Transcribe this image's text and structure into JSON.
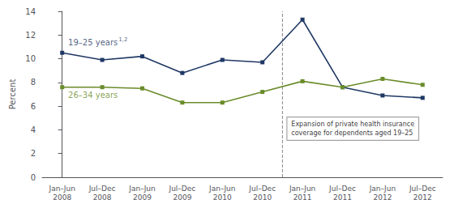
{
  "chart_data": {
    "type": "line",
    "categories": [
      "Jan–Jun\n2008",
      "Jul–Dec\n2008",
      "Jan–Jun\n2009",
      "Jul–Dec\n2009",
      "Jan–Jun\n2010",
      "Jul–Dec\n2010",
      "Jan–Jun\n2011",
      "Jul–Dec\n2011",
      "Jan–Jun\n2012",
      "Jul–Dec\n2012"
    ],
    "series": [
      {
        "name": "19–25 years",
        "superscript": "1,2",
        "color": "#1f3864",
        "values": [
          10.5,
          9.9,
          10.2,
          8.8,
          9.9,
          9.7,
          13.3,
          7.6,
          6.9,
          6.7
        ]
      },
      {
        "name": "26–34 years",
        "color": "#6a8c2a",
        "values": [
          7.6,
          7.6,
          7.5,
          6.3,
          6.3,
          7.2,
          8.1,
          7.6,
          8.3,
          7.8
        ]
      }
    ],
    "marker": "square",
    "y_label": "Percent",
    "ylim": [
      0,
      14
    ],
    "yticks": [
      0,
      2,
      4,
      6,
      8,
      10,
      12,
      14
    ],
    "grid": false,
    "annotation": {
      "text": "Expansion of private health insurance\ncoverage for dependents aged 19–25",
      "x": 5.5,
      "color": "#888888"
    }
  }
}
